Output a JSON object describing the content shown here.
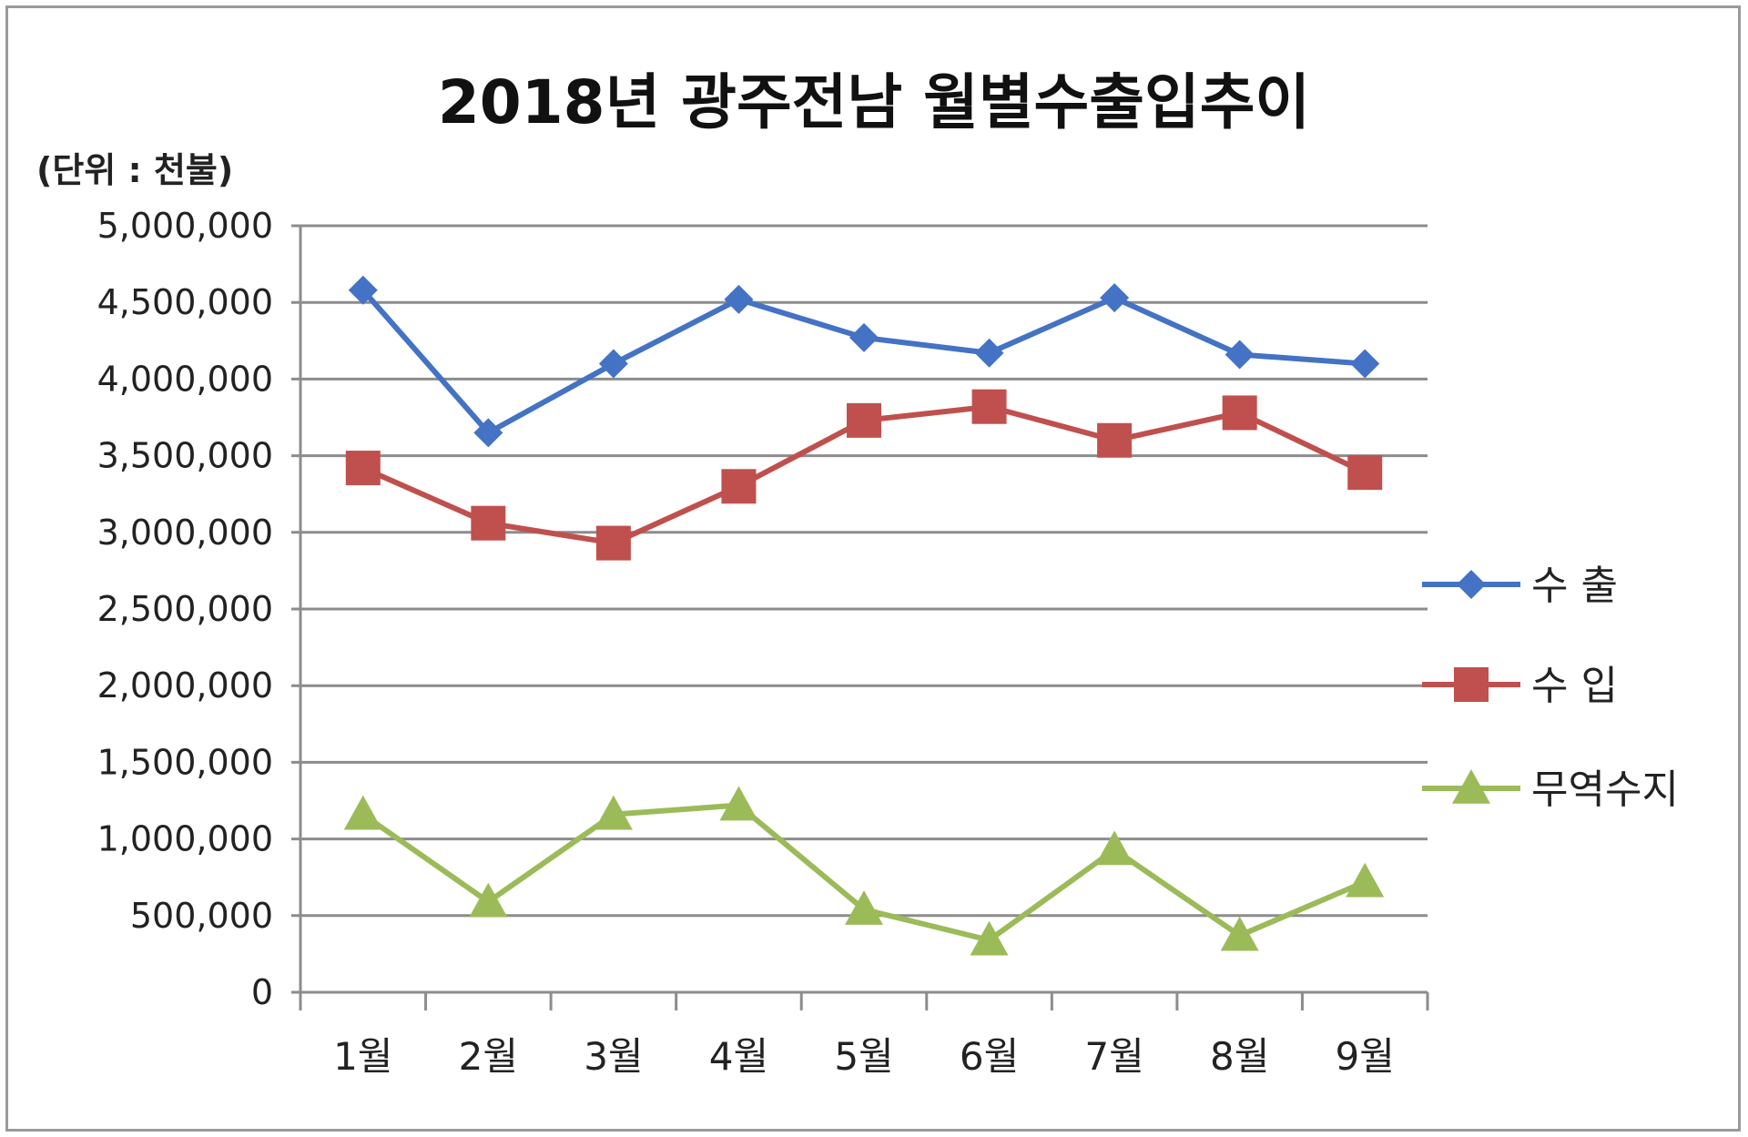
{
  "chart_data": {
    "type": "line",
    "title": "2018년 광주전남 월별수출입추이",
    "unit_label": "(단위 : 천불)",
    "categories": [
      "1월",
      "2월",
      "3월",
      "4월",
      "5월",
      "6월",
      "7월",
      "8월",
      "9월"
    ],
    "ylim": [
      0,
      5000000
    ],
    "yticks": [
      "0",
      "500,000",
      "1,000,000",
      "1,500,000",
      "2,000,000",
      "2,500,000",
      "3,000,000",
      "3,500,000",
      "4,000,000",
      "4,500,000",
      "5,000,000"
    ],
    "grid": true,
    "legend_position": "right",
    "series": [
      {
        "name": "수 출",
        "color": "#4472C4",
        "marker": "diamond",
        "values": [
          4580000,
          3650000,
          4100000,
          4520000,
          4270000,
          4170000,
          4530000,
          4160000,
          4100000
        ]
      },
      {
        "name": "수 입",
        "color": "#C0504D",
        "marker": "square",
        "values": [
          3420000,
          3060000,
          2930000,
          3300000,
          3730000,
          3820000,
          3600000,
          3780000,
          3390000
        ]
      },
      {
        "name": "무역수지",
        "color": "#9BBB59",
        "marker": "triangle",
        "values": [
          1160000,
          590000,
          1160000,
          1220000,
          540000,
          340000,
          930000,
          370000,
          720000
        ]
      }
    ]
  }
}
